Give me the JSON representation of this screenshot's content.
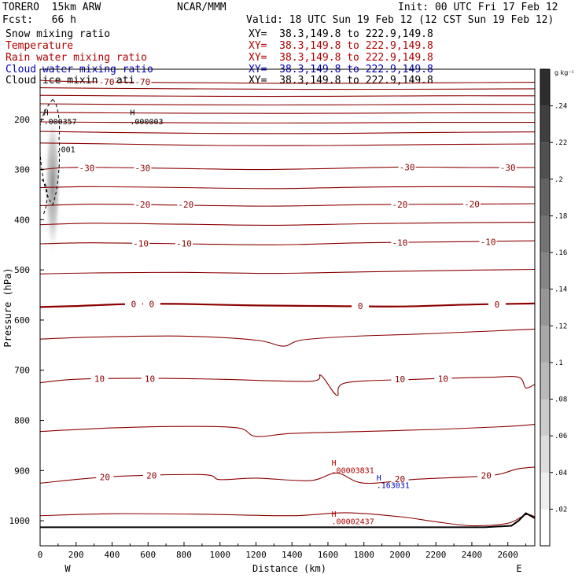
{
  "header": {
    "model": "TORERO  15km ARW",
    "org": "NCAR/MMM",
    "init": "Init: 00 UTC Fri 17 Feb 12",
    "fcst": "Fcst:   66 h",
    "valid": "Valid: 18 UTC Sun 19 Feb 12 (12 CST Sun 19 Feb 12)"
  },
  "legend": [
    {
      "label": "Snow mixing ratio",
      "xy": "XY=  38.3,149.8 to 222.9,149.8",
      "color": "#000000"
    },
    {
      "label": "Temperature",
      "xy": "XY=  38.3,149.8 to 222.9,149.8",
      "color": "#b00000"
    },
    {
      "label": "Rain water mixing ratio",
      "xy": "XY=  38.3,149.8 to 222.9,149.8",
      "color": "#b00000"
    },
    {
      "label": "Cloud water mixing ratio",
      "xy": "XY=  38.3,149.8 to 222.9,149.8",
      "color": "#0000b4"
    },
    {
      "label": "Cloud ice mixing ratio",
      "xy": "XY=  38.3,149.8 to 222.9,149.8",
      "color": "#000000"
    }
  ],
  "chart_data": {
    "type": "cross-section",
    "xlabel": "Distance (km)",
    "ylabel": "Pressure (hPa)",
    "xlim": [
      0,
      2750
    ],
    "ylim": [
      1050,
      100
    ],
    "xticks": [
      0,
      200,
      400,
      600,
      800,
      1000,
      1200,
      1400,
      1600,
      1800,
      2000,
      2200,
      2400,
      2600
    ],
    "yticks": [
      200,
      300,
      400,
      500,
      600,
      700,
      800,
      900,
      1000
    ],
    "x_end_labels": {
      "left": "W",
      "right": "E"
    },
    "colorbar": {
      "unit": "g kg⁻¹",
      "ticks": [
        ".02",
        ".04",
        ".06",
        ".08",
        ".1",
        ".12",
        ".14",
        ".16",
        ".18",
        ".2",
        ".22",
        ".24"
      ]
    },
    "temperature_contours": [
      {
        "level": -70,
        "label": "-70",
        "p": [
          [
            0,
            122
          ],
          [
            120,
            124
          ],
          [
            500,
            126
          ],
          [
            900,
            127
          ],
          [
            1300,
            128
          ],
          [
            1800,
            128
          ],
          [
            2300,
            127
          ],
          [
            2750,
            126
          ]
        ]
      },
      {
        "level": -60,
        "label": "",
        "p": [
          [
            0,
            137
          ],
          [
            300,
            138
          ],
          [
            800,
            139
          ],
          [
            1400,
            140
          ],
          [
            2000,
            140
          ],
          [
            2750,
            139
          ]
        ]
      },
      {
        "level": -55,
        "label": "",
        "p": [
          [
            0,
            152
          ],
          [
            400,
            153
          ],
          [
            1000,
            154
          ],
          [
            1600,
            154
          ],
          [
            2200,
            153
          ],
          [
            2750,
            153
          ]
        ]
      },
      {
        "level": -50,
        "label": "",
        "p": [
          [
            0,
            169
          ],
          [
            400,
            170
          ],
          [
            1000,
            171
          ],
          [
            1600,
            171
          ],
          [
            2200,
            170
          ],
          [
            2750,
            170
          ]
        ]
      },
      {
        "level": -45,
        "label": "",
        "p": [
          [
            0,
            186
          ],
          [
            400,
            187
          ],
          [
            1000,
            188
          ],
          [
            1600,
            188
          ],
          [
            2200,
            187
          ],
          [
            2750,
            187
          ]
        ]
      },
      {
        "level": -42,
        "label": "",
        "p": [
          [
            0,
            205
          ],
          [
            400,
            206
          ],
          [
            1000,
            207
          ],
          [
            1600,
            207
          ],
          [
            2200,
            206
          ],
          [
            2750,
            206
          ]
        ]
      },
      {
        "level": -38,
        "label": "",
        "p": [
          [
            0,
            224
          ],
          [
            400,
            226
          ],
          [
            1000,
            228
          ],
          [
            1600,
            228
          ],
          [
            2200,
            226
          ],
          [
            2750,
            225
          ]
        ]
      },
      {
        "level": -35,
        "label": "",
        "p": [
          [
            0,
            247
          ],
          [
            400,
            249
          ],
          [
            1000,
            252
          ],
          [
            1600,
            252
          ],
          [
            2200,
            250
          ],
          [
            2750,
            249
          ]
        ]
      },
      {
        "level": -30,
        "label": "-30",
        "p": [
          [
            0,
            300
          ],
          [
            150,
            296
          ],
          [
            400,
            296
          ],
          [
            800,
            298
          ],
          [
            1200,
            300
          ],
          [
            1600,
            298
          ],
          [
            2000,
            295
          ],
          [
            2400,
            296
          ],
          [
            2750,
            296
          ]
        ]
      },
      {
        "level": -25,
        "label": "",
        "p": [
          [
            0,
            336
          ],
          [
            300,
            334
          ],
          [
            800,
            336
          ],
          [
            1300,
            338
          ],
          [
            1800,
            335
          ],
          [
            2300,
            334
          ],
          [
            2750,
            335
          ]
        ]
      },
      {
        "level": -20,
        "label": "-20",
        "p": [
          [
            0,
            372
          ],
          [
            300,
            369
          ],
          [
            800,
            371
          ],
          [
            1300,
            373
          ],
          [
            1800,
            370
          ],
          [
            2300,
            369
          ],
          [
            2750,
            368
          ]
        ]
      },
      {
        "level": -15,
        "label": "",
        "p": [
          [
            0,
            410
          ],
          [
            300,
            407
          ],
          [
            800,
            409
          ],
          [
            1300,
            411
          ],
          [
            1800,
            408
          ],
          [
            2300,
            406
          ],
          [
            2750,
            405
          ]
        ]
      },
      {
        "level": -10,
        "label": "-10",
        "p": [
          [
            0,
            448
          ],
          [
            300,
            446
          ],
          [
            800,
            448
          ],
          [
            1300,
            450
          ],
          [
            1800,
            446
          ],
          [
            2300,
            444
          ],
          [
            2750,
            442
          ]
        ]
      },
      {
        "level": -5,
        "label": "",
        "p": [
          [
            0,
            508
          ],
          [
            300,
            506
          ],
          [
            800,
            505
          ],
          [
            1300,
            507
          ],
          [
            1800,
            504
          ],
          [
            2300,
            501
          ],
          [
            2750,
            499
          ]
        ]
      },
      {
        "level": 0,
        "label": "0",
        "bold": true,
        "p": [
          [
            0,
            574
          ],
          [
            200,
            572
          ],
          [
            500,
            568
          ],
          [
            800,
            568
          ],
          [
            1200,
            571
          ],
          [
            1600,
            572
          ],
          [
            2000,
            573
          ],
          [
            2400,
            569
          ],
          [
            2750,
            567
          ]
        ]
      },
      {
        "level": 5,
        "label": "",
        "p": [
          [
            0,
            638
          ],
          [
            300,
            634
          ],
          [
            800,
            632
          ],
          [
            1200,
            640
          ],
          [
            1350,
            652
          ],
          [
            1450,
            640
          ],
          [
            1700,
            633
          ],
          [
            2100,
            628
          ],
          [
            2500,
            622
          ],
          [
            2750,
            618
          ]
        ]
      },
      {
        "level": 10,
        "label": "10",
        "p": [
          [
            0,
            725
          ],
          [
            200,
            718
          ],
          [
            600,
            716
          ],
          [
            1000,
            718
          ],
          [
            1500,
            722
          ],
          [
            1560,
            710
          ],
          [
            1650,
            750
          ],
          [
            1700,
            725
          ],
          [
            2100,
            718
          ],
          [
            2500,
            714
          ],
          [
            2660,
            714
          ],
          [
            2700,
            735
          ],
          [
            2750,
            728
          ]
        ]
      },
      {
        "level": 15,
        "label": "",
        "p": [
          [
            0,
            822
          ],
          [
            400,
            815
          ],
          [
            800,
            812
          ],
          [
            1100,
            815
          ],
          [
            1200,
            832
          ],
          [
            1400,
            826
          ],
          [
            1800,
            822
          ],
          [
            2200,
            818
          ],
          [
            2600,
            812
          ],
          [
            2750,
            808
          ]
        ]
      },
      {
        "level": 20,
        "label": "20",
        "p": [
          [
            0,
            925
          ],
          [
            400,
            912
          ],
          [
            900,
            908
          ],
          [
            1000,
            918
          ],
          [
            1200,
            915
          ],
          [
            1500,
            920
          ],
          [
            1650,
            905
          ],
          [
            1800,
            925
          ],
          [
            2100,
            917
          ],
          [
            2500,
            910
          ],
          [
            2650,
            897
          ],
          [
            2750,
            893
          ]
        ]
      },
      {
        "level": 25,
        "label": "",
        "p": [
          [
            0,
            990
          ],
          [
            400,
            986
          ],
          [
            900,
            987
          ],
          [
            1400,
            990
          ],
          [
            1700,
            984
          ],
          [
            2000,
            992
          ],
          [
            2200,
            1002
          ],
          [
            2400,
            1010
          ],
          [
            2600,
            1005
          ],
          [
            2700,
            988
          ],
          [
            2750,
            992
          ]
        ]
      }
    ],
    "terrain": [
      [
        0,
        1013
      ],
      [
        2470,
        1013
      ],
      [
        2620,
        1010
      ],
      [
        2660,
        1000
      ],
      [
        2700,
        985
      ],
      [
        2750,
        995
      ]
    ],
    "snow_plume": {
      "x_km": 70,
      "top_hPa": 195,
      "bottom_hPa": 490
    },
    "cloud_ice_outline": {
      "x_km": 70,
      "top_hPa": 160,
      "bottom_hPa": 370
    },
    "annotations": [
      {
        "text": "H",
        "x": 20,
        "y": 192,
        "color": "#000000"
      },
      {
        "text": ".000357",
        "x": 20,
        "y": 210,
        "color": "#000000"
      },
      {
        "text": "H",
        "x": 500,
        "y": 192,
        "color": "#000000"
      },
      {
        "text": ".000003",
        "x": 500,
        "y": 210,
        "color": "#000000"
      },
      {
        "text": ".001",
        "x": 90,
        "y": 265,
        "color": "#000000"
      },
      {
        "text": "H",
        "x": 1620,
        "y": 890,
        "color": "#b00000"
      },
      {
        "text": ".00003831",
        "x": 1620,
        "y": 905,
        "color": "#b00000"
      },
      {
        "text": "H",
        "x": 1870,
        "y": 920,
        "color": "#0000b4"
      },
      {
        "text": ".163031",
        "x": 1870,
        "y": 935,
        "color": "#0000b4"
      },
      {
        "text": "H",
        "x": 1620,
        "y": 992,
        "color": "#b00000"
      },
      {
        "text": ".00002437",
        "x": 1620,
        "y": 1007,
        "color": "#b00000"
      }
    ],
    "contour_labels": [
      {
        "text": "-70",
        "x": 370,
        "y": 125
      },
      {
        "text": "-70",
        "x": 570,
        "y": 125
      },
      {
        "text": "-30",
        "x": 260,
        "y": 297
      },
      {
        "text": "-30",
        "x": 570,
        "y": 297
      },
      {
        "text": "-30",
        "x": 2040,
        "y": 295
      },
      {
        "text": "-30",
        "x": 2600,
        "y": 296
      },
      {
        "text": "-20",
        "x": 570,
        "y": 370
      },
      {
        "text": "-20",
        "x": 810,
        "y": 370
      },
      {
        "text": "-20",
        "x": 2000,
        "y": 370
      },
      {
        "text": "-20",
        "x": 2400,
        "y": 369
      },
      {
        "text": "-10",
        "x": 560,
        "y": 447
      },
      {
        "text": "-10",
        "x": 800,
        "y": 447
      },
      {
        "text": "-10",
        "x": 2000,
        "y": 446
      },
      {
        "text": "-10",
        "x": 2490,
        "y": 444
      },
      {
        "text": "0",
        "x": 520,
        "y": 568
      },
      {
        "text": "0",
        "x": 620,
        "y": 568
      },
      {
        "text": "0",
        "x": 1780,
        "y": 572
      },
      {
        "text": "0",
        "x": 2540,
        "y": 569
      },
      {
        "text": "10",
        "x": 330,
        "y": 717
      },
      {
        "text": "10",
        "x": 610,
        "y": 717
      },
      {
        "text": "10",
        "x": 2000,
        "y": 718
      },
      {
        "text": "10",
        "x": 2240,
        "y": 717
      },
      {
        "text": "20",
        "x": 360,
        "y": 913
      },
      {
        "text": "20",
        "x": 620,
        "y": 910
      },
      {
        "text": "20",
        "x": 2000,
        "y": 917
      },
      {
        "text": "20",
        "x": 2480,
        "y": 910
      }
    ]
  }
}
